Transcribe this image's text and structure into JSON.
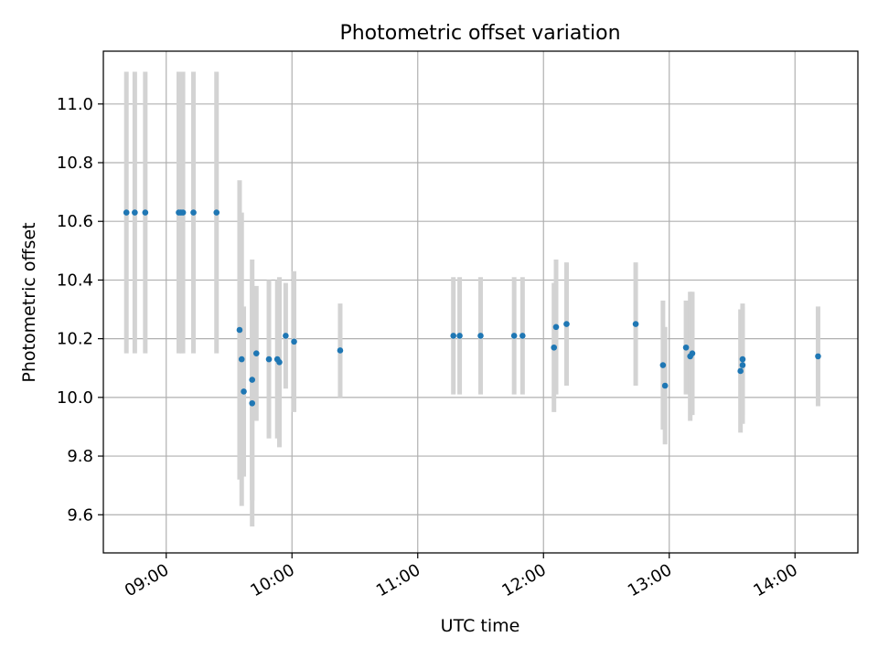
{
  "chart_data": {
    "type": "scatter",
    "title": "Photometric offset variation",
    "xlabel": "UTC time",
    "ylabel": "Photometric offset",
    "xlim": [
      "08:30",
      "14:30"
    ],
    "ylim": [
      9.47,
      11.18
    ],
    "x_ticks": [
      "09:00",
      "10:00",
      "11:00",
      "12:00",
      "13:00",
      "14:00"
    ],
    "y_ticks": [
      "9.6",
      "9.8",
      "10.0",
      "10.2",
      "10.4",
      "10.6",
      "10.8",
      "11.0"
    ],
    "grid": true,
    "colors": {
      "marker": "#1f77b4",
      "errorbar": "#d3d3d3",
      "grid": "#b0b0b0"
    },
    "series": [
      {
        "points": [
          {
            "x": "08:41",
            "y": 10.63,
            "err": 0.48
          },
          {
            "x": "08:45",
            "y": 10.63,
            "err": 0.48
          },
          {
            "x": "08:50",
            "y": 10.63,
            "err": 0.48
          },
          {
            "x": "09:06",
            "y": 10.63,
            "err": 0.48
          },
          {
            "x": "09:07",
            "y": 10.63,
            "err": 0.48
          },
          {
            "x": "09:08",
            "y": 10.63,
            "err": 0.48
          },
          {
            "x": "09:13",
            "y": 10.63,
            "err": 0.48
          },
          {
            "x": "09:24",
            "y": 10.63,
            "err": 0.48
          },
          {
            "x": "09:35",
            "y": 10.23,
            "err": 0.51
          },
          {
            "x": "09:36",
            "y": 10.13,
            "err": 0.5
          },
          {
            "x": "09:37",
            "y": 10.02,
            "err": 0.29
          },
          {
            "x": "09:41",
            "y": 9.98,
            "err": 0.42
          },
          {
            "x": "09:41",
            "y": 10.06,
            "err": 0.41
          },
          {
            "x": "09:43",
            "y": 10.15,
            "err": 0.23
          },
          {
            "x": "09:49",
            "y": 10.13,
            "err": 0.27
          },
          {
            "x": "09:53",
            "y": 10.13,
            "err": 0.27
          },
          {
            "x": "09:54",
            "y": 10.12,
            "err": 0.29
          },
          {
            "x": "09:57",
            "y": 10.21,
            "err": 0.18
          },
          {
            "x": "10:01",
            "y": 10.19,
            "err": 0.24
          },
          {
            "x": "10:23",
            "y": 10.16,
            "err": 0.16
          },
          {
            "x": "11:17",
            "y": 10.21,
            "err": 0.2
          },
          {
            "x": "11:20",
            "y": 10.21,
            "err": 0.2
          },
          {
            "x": "11:30",
            "y": 10.21,
            "err": 0.2
          },
          {
            "x": "11:46",
            "y": 10.21,
            "err": 0.2
          },
          {
            "x": "11:50",
            "y": 10.21,
            "err": 0.2
          },
          {
            "x": "12:05",
            "y": 10.17,
            "err": 0.22
          },
          {
            "x": "12:06",
            "y": 10.24,
            "err": 0.23
          },
          {
            "x": "12:11",
            "y": 10.25,
            "err": 0.21
          },
          {
            "x": "12:44",
            "y": 10.25,
            "err": 0.21
          },
          {
            "x": "12:57",
            "y": 10.11,
            "err": 0.22
          },
          {
            "x": "12:58",
            "y": 10.04,
            "err": 0.2
          },
          {
            "x": "13:08",
            "y": 10.17,
            "err": 0.16
          },
          {
            "x": "13:10",
            "y": 10.14,
            "err": 0.22
          },
          {
            "x": "13:11",
            "y": 10.15,
            "err": 0.21
          },
          {
            "x": "13:34",
            "y": 10.09,
            "err": 0.21
          },
          {
            "x": "13:35",
            "y": 10.11,
            "err": 0.2
          },
          {
            "x": "13:35",
            "y": 10.13,
            "err": 0.19
          },
          {
            "x": "14:11",
            "y": 10.14,
            "err": 0.17
          }
        ]
      }
    ]
  }
}
